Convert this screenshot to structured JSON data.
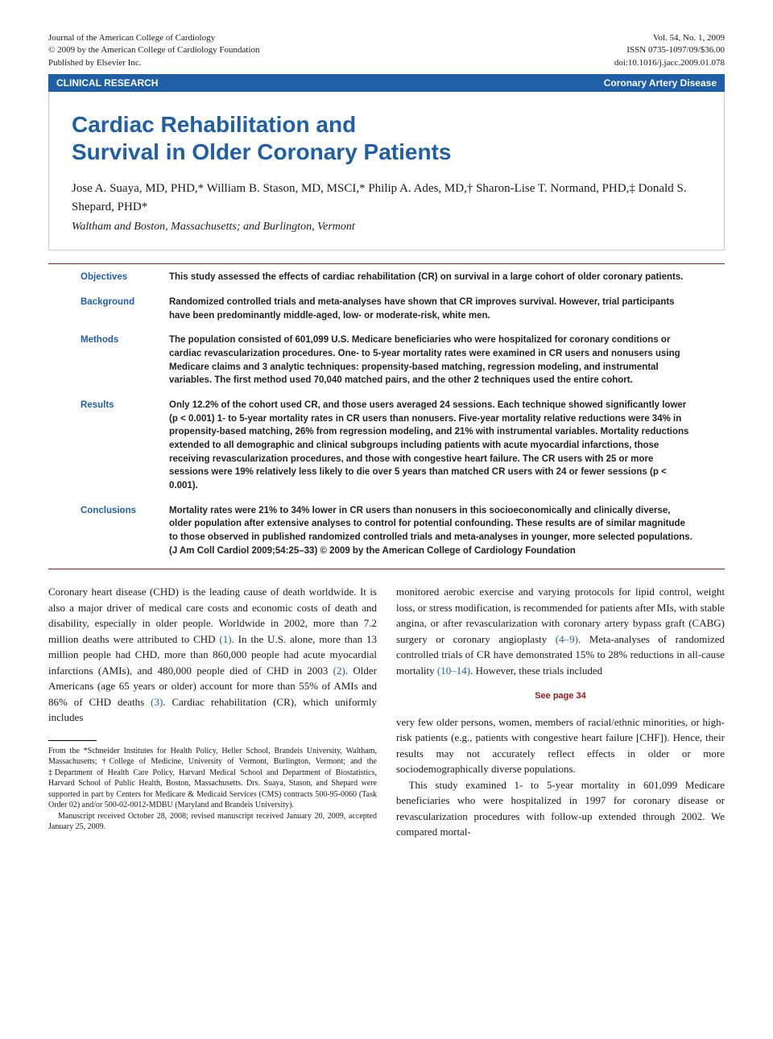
{
  "header": {
    "journal_line1": "Journal of the American College of Cardiology",
    "journal_line2": "© 2009 by the American College of Cardiology Foundation",
    "journal_line3": "Published by Elsevier Inc.",
    "vol_line": "Vol. 54, No. 1, 2009",
    "issn_line": "ISSN 0735-1097/09/$36.00",
    "doi_line": "doi:10.1016/j.jacc.2009.01.078"
  },
  "blue_bar": {
    "left": "CLINICAL RESEARCH",
    "right": "Coronary Artery Disease"
  },
  "title": {
    "line1": "Cardiac Rehabilitation and",
    "line2": "Survival in Older Coronary Patients"
  },
  "authors": "Jose A. Suaya, MD, PHD,* William B. Stason, MD, MSCI,* Philip A. Ades, MD,† Sharon-Lise T. Normand, PHD,‡ Donald S. Shepard, PHD*",
  "affiliation": "Waltham and Boston, Massachusetts; and Burlington, Vermont",
  "abstract": {
    "objectives": {
      "label": "Objectives",
      "text": "This study assessed the effects of cardiac rehabilitation (CR) on survival in a large cohort of older coronary patients."
    },
    "background": {
      "label": "Background",
      "text": "Randomized controlled trials and meta-analyses have shown that CR improves survival. However, trial participants have been predominantly middle-aged, low- or moderate-risk, white men."
    },
    "methods": {
      "label": "Methods",
      "text": "The population consisted of 601,099 U.S. Medicare beneficiaries who were hospitalized for coronary conditions or cardiac revascularization procedures. One- to 5-year mortality rates were examined in CR users and nonusers using Medicare claims and 3 analytic techniques: propensity-based matching, regression modeling, and instrumental variables. The first method used 70,040 matched pairs, and the other 2 techniques used the entire cohort."
    },
    "results": {
      "label": "Results",
      "text": "Only 12.2% of the cohort used CR, and those users averaged 24 sessions. Each technique showed significantly lower (p < 0.001) 1- to 5-year mortality rates in CR users than nonusers. Five-year mortality relative reductions were 34% in propensity-based matching, 26% from regression modeling, and 21% with instrumental variables. Mortality reductions extended to all demographic and clinical subgroups including patients with acute myocardial infarctions, those receiving revascularization procedures, and those with congestive heart failure. The CR users with 25 or more sessions were 19% relatively less likely to die over 5 years than matched CR users with 24 or fewer sessions (p < 0.001)."
    },
    "conclusions": {
      "label": "Conclusions",
      "text": "Mortality rates were 21% to 34% lower in CR users than nonusers in this socioeconomically and clinically diverse, older population after extensive analyses to control for potential confounding. These results are of similar magnitude to those observed in published randomized controlled trials and meta-analyses in younger, more selected populations.   (J Am Coll Cardiol 2009;54:25–33) © 2009 by the American College of Cardiology Foundation"
    }
  },
  "body": {
    "col1_p1_a": "Coronary heart disease (CHD) is the leading cause of death worldwide. It is also a major driver of medical care costs and economic costs of death and disability, especially in older people. Worldwide in 2002, more than 7.2 million deaths were attributed to CHD ",
    "ref1": "(1)",
    "col1_p1_b": ". In the U.S. alone, more than 13 million people had CHD, more than 860,000 people had acute myocardial infarctions (AMIs), and 480,000 people died of CHD in 2003 ",
    "ref2": "(2)",
    "col1_p1_c": ". Older Americans (age 65 years or older) account for more than 55% of AMIs and 86% of CHD deaths ",
    "ref3": "(3)",
    "col1_p1_d": ". Cardiac rehabilitation (CR), which uniformly includes",
    "col2_p1_a": "monitored aerobic exercise and varying protocols for lipid control, weight loss, or stress modification, is recommended for patients after MIs, with stable angina, or after revascularization with coronary artery bypass graft (CABG) surgery or coronary angioplasty ",
    "ref4_9": "(4–9)",
    "col2_p1_b": ". Meta-analyses of randomized controlled trials of CR have demonstrated 15% to 28% reductions in all-cause mortality ",
    "ref10_14": "(10–14)",
    "col2_p1_c": ". However, these trials included",
    "see_page": "See page 34",
    "col2_p2": "very few older persons, women, members of racial/ethnic minorities, or high-risk patients (e.g., patients with congestive heart failure [CHF]). Hence, their results may not accurately reflect effects in older or more sociodemographically diverse populations.",
    "col2_p3": "This study examined 1- to 5-year mortality in 601,099 Medicare beneficiaries who were hospitalized in 1997 for coronary disease or revascularization procedures with follow-up extended through 2002. We compared mortal-"
  },
  "footnote": {
    "p1": "From the *Schneider Institutes for Health Policy, Heller School, Brandeis University, Waltham, Massachusetts; †College of Medicine, University of Vermont, Burlington, Vermont; and the ‡Department of Health Care Policy, Harvard Medical School and Department of Biostatistics, Harvard School of Public Health, Boston, Massachusetts. Drs. Suaya, Stason, and Shepard were supported in part by Centers for Medicare & Medicaid Services (CMS) contracts 500-95-0060 (Task Order 02) and/or 500-02-0012-MDBU (Maryland and Brandeis University).",
    "p2": "Manuscript received October 28, 2008; revised manuscript received January 20, 2009, accepted January 25, 2009."
  },
  "colors": {
    "blue": "#1e5fa8",
    "red": "#a01818",
    "text": "#1a1a1a",
    "background": "#ffffff"
  },
  "typography": {
    "body_font": "Georgia, Times New Roman, serif",
    "heading_font": "Arial, Helvetica, sans-serif",
    "title_fontsize": 28,
    "abstract_fontsize": 11.5,
    "body_fontsize": 13,
    "footnote_fontsize": 10
  }
}
